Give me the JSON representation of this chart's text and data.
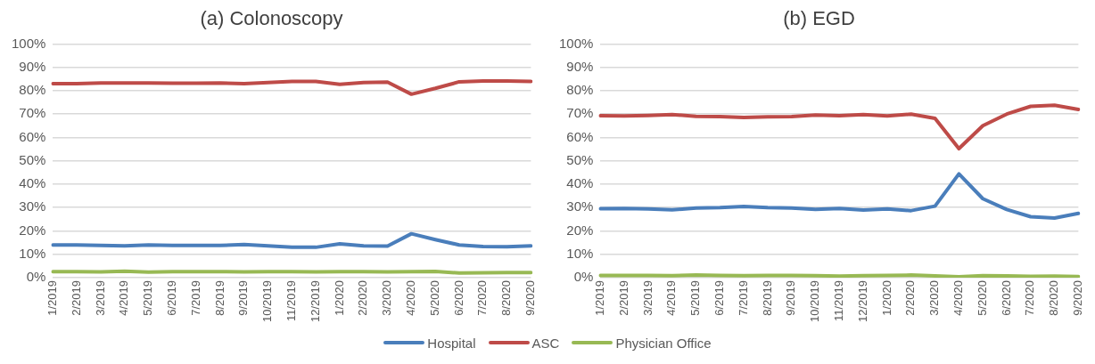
{
  "chart_data": [
    {
      "type": "line",
      "title": "(a) Colonoscopy",
      "categories": [
        "1/2019",
        "2/2019",
        "3/2019",
        "4/2019",
        "5/2019",
        "6/2019",
        "7/2019",
        "8/2019",
        "9/2019",
        "10/2019",
        "11/2019",
        "12/2019",
        "1/2020",
        "2/2020",
        "3/2020",
        "4/2020",
        "5/2020",
        "6/2020",
        "7/2020",
        "8/2020",
        "9/2020"
      ],
      "series": [
        {
          "name": "Hospital",
          "color": "#4a7ebb",
          "values": [
            14,
            14,
            13.8,
            13.6,
            14,
            13.8,
            13.8,
            13.8,
            14.2,
            13.6,
            13,
            13,
            14.5,
            13.6,
            13.5,
            18.8,
            16.3,
            14,
            13.3,
            13.2,
            13.6
          ]
        },
        {
          "name": "ASC",
          "color": "#be4b48",
          "values": [
            83,
            83,
            83.3,
            83.3,
            83.3,
            83.2,
            83.2,
            83.3,
            83,
            83.5,
            84,
            84,
            82.7,
            83.5,
            83.7,
            78.5,
            81,
            83.8,
            84.2,
            84.2,
            84
          ]
        },
        {
          "name": "Physician Office",
          "color": "#98b954",
          "values": [
            2.6,
            2.6,
            2.5,
            2.8,
            2.4,
            2.6,
            2.6,
            2.6,
            2.5,
            2.6,
            2.6,
            2.5,
            2.6,
            2.6,
            2.5,
            2.6,
            2.7,
            2,
            2.1,
            2.2,
            2.2
          ]
        }
      ],
      "ylim": [
        0,
        100
      ],
      "yticks": [
        {
          "value": 0,
          "label": "0%"
        },
        {
          "value": 10,
          "label": "10%"
        },
        {
          "value": 20,
          "label": "20%"
        },
        {
          "value": 30,
          "label": "30%"
        },
        {
          "value": 40,
          "label": "40%"
        },
        {
          "value": 50,
          "label": "50%"
        },
        {
          "value": 60,
          "label": "60%"
        },
        {
          "value": 70,
          "label": "70%"
        },
        {
          "value": 80,
          "label": "80%"
        },
        {
          "value": 90,
          "label": "90%"
        },
        {
          "value": 100,
          "label": "100%"
        }
      ],
      "grid": "y",
      "legend": "bottom",
      "marker": "none",
      "line_style": "solid"
    },
    {
      "type": "line",
      "title": "(b) EGD",
      "categories": [
        "1/2019",
        "2/2019",
        "3/2019",
        "4/2019",
        "5/2019",
        "6/2019",
        "7/2019",
        "8/2019",
        "9/2019",
        "10/2019",
        "11/2019",
        "12/2019",
        "1/2020",
        "2/2020",
        "3/2020",
        "4/2020",
        "5/2020",
        "6/2020",
        "7/2020",
        "8/2020",
        "9/2020"
      ],
      "series": [
        {
          "color": "#4a7ebb",
          "values": [
            29.5,
            29.6,
            29.4,
            29,
            29.8,
            30,
            30.5,
            30,
            29.8,
            29.2,
            29.6,
            28.9,
            29.4,
            28.7,
            30.6,
            44.4,
            33.8,
            29.2,
            26.1,
            25.5,
            27.5
          ]
        },
        {
          "color": "#be4b48",
          "values": [
            69.3,
            69.2,
            69.4,
            69.8,
            69,
            68.9,
            68.5,
            68.8,
            68.9,
            69.6,
            69.3,
            69.8,
            69.2,
            70,
            68.2,
            55.2,
            65,
            70,
            73.3,
            73.8,
            72
          ]
        },
        {
          "color": "#98b954",
          "values": [
            1,
            1,
            1,
            0.9,
            1.1,
            1,
            0.9,
            1,
            1,
            0.9,
            0.7,
            0.9,
            1,
            1.1,
            0.8,
            0.4,
            0.9,
            0.8,
            0.6,
            0.7,
            0.5
          ]
        }
      ],
      "ylim": [
        0,
        100
      ],
      "yticks": [
        {
          "value": 0,
          "label": "0%"
        },
        {
          "value": 10,
          "label": "10%"
        },
        {
          "value": 20,
          "label": "20%"
        },
        {
          "value": 30,
          "label": "30%"
        },
        {
          "value": 40,
          "label": "40%"
        },
        {
          "value": 50,
          "label": "50%"
        },
        {
          "value": 60,
          "label": "60%"
        },
        {
          "value": 70,
          "label": "70%"
        },
        {
          "value": 80,
          "label": "80%"
        },
        {
          "value": 90,
          "label": "90%"
        },
        {
          "value": 100,
          "label": "100%"
        }
      ],
      "grid": "y",
      "marker": "none",
      "line_style": "solid"
    }
  ]
}
